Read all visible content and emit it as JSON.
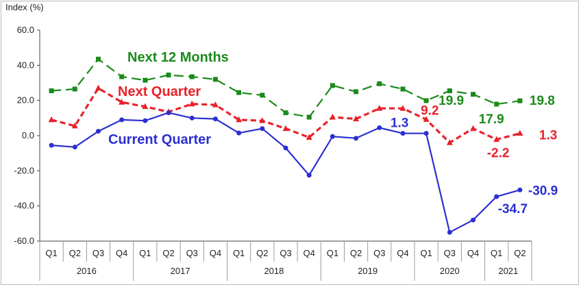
{
  "chart_data": {
    "type": "line",
    "ylabel": "Index (%)",
    "ylim": [
      -60,
      60
    ],
    "ytick_labels": [
      "60.0",
      "40.0",
      "20.0",
      "0.0",
      "-20.0",
      "-40.0",
      "-60.0"
    ],
    "ytick_values": [
      60,
      40,
      20,
      0,
      -20,
      -40,
      -60
    ],
    "categories": [
      "Q1",
      "Q2",
      "Q3",
      "Q4",
      "Q1",
      "Q2",
      "Q3",
      "Q4",
      "Q1",
      "Q2",
      "Q3",
      "Q4",
      "Q1",
      "Q2",
      "Q3",
      "Q4",
      "Q1",
      "Q3",
      "Q4",
      "Q1",
      "Q2"
    ],
    "years": [
      {
        "label": "2016",
        "count": 4
      },
      {
        "label": "2017",
        "count": 4
      },
      {
        "label": "2018",
        "count": 4
      },
      {
        "label": "2019",
        "count": 4
      },
      {
        "label": "2020",
        "count": 3
      },
      {
        "label": "2021",
        "count": 2
      }
    ],
    "grid": false,
    "series": [
      {
        "name": "Next 12 Months",
        "color": "#1a8a1a",
        "dash": "dashed-long",
        "marker": "square",
        "values": [
          25.5,
          26.5,
          43.5,
          33.5,
          31.5,
          34.5,
          33.5,
          32,
          24.5,
          23,
          13,
          10.5,
          28.5,
          25,
          29.5,
          26.5,
          19.9,
          25.5,
          23.5,
          17.9,
          19.8
        ]
      },
      {
        "name": "Next Quarter",
        "color": "#e8212a",
        "dash": "dashed-short",
        "marker": "triangle",
        "values": [
          9,
          5.5,
          27,
          19,
          16.5,
          13.5,
          18,
          17.5,
          9,
          8.5,
          4,
          -1,
          10.5,
          9.5,
          15.5,
          15.5,
          9.2,
          -4,
          4,
          -2.2,
          1.3
        ]
      },
      {
        "name": "Current Quarter",
        "color": "#2b2fd1",
        "dash": "solid",
        "marker": "circle",
        "values": [
          -5.5,
          -6.5,
          2.5,
          9,
          8.5,
          13,
          10,
          9.5,
          1.5,
          4,
          -7,
          -22.5,
          -0.5,
          -1.5,
          4.5,
          1.3,
          1.3,
          -55,
          -48,
          -34.7,
          -30.9
        ]
      }
    ],
    "annotations": [
      {
        "series": 0,
        "index": 16,
        "text": "19.9"
      },
      {
        "series": 0,
        "index": 19,
        "text": "17.9"
      },
      {
        "series": 0,
        "index": 20,
        "text": "19.8"
      },
      {
        "series": 1,
        "index": 16,
        "text": "9.2"
      },
      {
        "series": 1,
        "index": 19,
        "text": "-2.2"
      },
      {
        "series": 1,
        "index": 20,
        "text": "1.3"
      },
      {
        "series": 2,
        "index": 15,
        "text": "1.3"
      },
      {
        "series": 2,
        "index": 19,
        "text": "-34.7"
      },
      {
        "series": 2,
        "index": 20,
        "text": "-30.9"
      }
    ]
  }
}
